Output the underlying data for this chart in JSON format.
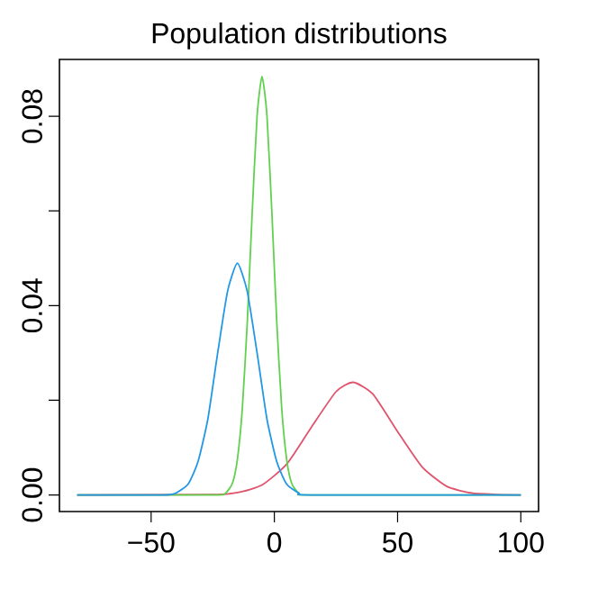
{
  "chart_data": {
    "type": "line",
    "title": "Population distributions",
    "xlim": [
      -87.2,
      107.2
    ],
    "ylim": [
      -0.0035,
      0.092
    ],
    "xticks": [
      {
        "value": -50,
        "label": "−50"
      },
      0,
      50,
      100
    ],
    "yticks": [
      {
        "value": 0,
        "label": "0.00"
      },
      {
        "value": 0.02,
        "label": null
      },
      0.04,
      {
        "value": 0.06,
        "label": null
      },
      0.08
    ],
    "series": [
      {
        "color": "#DF536B",
        "x": [
          -80,
          -25,
          -15,
          -5,
          5,
          15,
          25,
          32,
          40,
          50,
          60,
          70,
          80,
          90,
          100
        ],
        "values": [
          0,
          0.0001,
          0.0005,
          0.0021,
          0.0065,
          0.0143,
          0.0218,
          0.0238,
          0.0213,
          0.0134,
          0.0059,
          0.0018,
          0.0004,
          0.0001,
          0
        ]
      },
      {
        "color": "#61D04F",
        "x": [
          -80,
          -25,
          -20,
          -17,
          -15,
          -13,
          -11,
          -9,
          -7,
          -5,
          -3,
          -1,
          1,
          3,
          5,
          7,
          10,
          15,
          100
        ],
        "values": [
          0,
          0,
          0.0003,
          0.0025,
          0.0075,
          0.0182,
          0.0363,
          0.0596,
          0.0801,
          0.0884,
          0.0801,
          0.0596,
          0.0363,
          0.0182,
          0.0075,
          0.0025,
          0.0003,
          0,
          0
        ]
      },
      {
        "color": "#2297E6",
        "x": [
          -80,
          -45,
          -40,
          -35,
          -31,
          -27,
          -23,
          -19,
          -15,
          -11,
          -7,
          -3,
          1,
          5,
          10,
          15,
          100
        ],
        "values": [
          0,
          0,
          0.0004,
          0.0023,
          0.007,
          0.016,
          0.03,
          0.043,
          0.049,
          0.043,
          0.03,
          0.016,
          0.007,
          0.0023,
          0.0004,
          0,
          0
        ]
      }
    ]
  }
}
